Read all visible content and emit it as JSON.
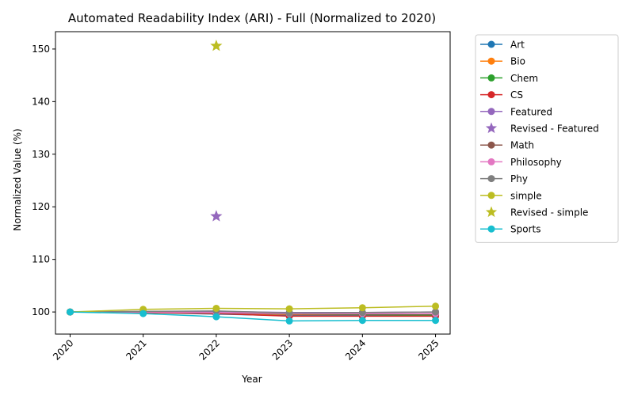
{
  "chart_data": {
    "type": "line",
    "title": "Automated Readability Index (ARI) - Full (Normalized to 2020)",
    "xlabel": "Year",
    "ylabel": "Normalized Value (%)",
    "x": [
      2020,
      2021,
      2022,
      2023,
      2024,
      2025
    ],
    "xlim": [
      2019.8,
      2025.2
    ],
    "ylim": [
      95.8,
      153.3
    ],
    "yticks": [
      100,
      110,
      120,
      130,
      140,
      150
    ],
    "grid": false,
    "legend_position": "outside-right",
    "series": [
      {
        "name": "Art",
        "color": "#1f77b4",
        "marker": "circle",
        "values": [
          100,
          99.9,
          99.6,
          99.3,
          99.3,
          99.3
        ]
      },
      {
        "name": "Bio",
        "color": "#ff7f0e",
        "marker": "circle",
        "values": [
          100,
          99.9,
          99.7,
          99.5,
          99.5,
          99.5
        ]
      },
      {
        "name": "Chem",
        "color": "#2ca02c",
        "marker": "circle",
        "values": [
          100,
          100.0,
          99.8,
          99.6,
          99.5,
          99.4
        ]
      },
      {
        "name": "CS",
        "color": "#d62728",
        "marker": "circle",
        "values": [
          100,
          99.9,
          99.7,
          99.2,
          99.2,
          99.2
        ]
      },
      {
        "name": "Featured",
        "color": "#9467bd",
        "marker": "circle",
        "values": [
          100,
          100.1,
          100.1,
          99.9,
          99.9,
          100.0
        ]
      },
      {
        "name": "Revised - Featured",
        "color": "#9467bd",
        "marker": "star",
        "points": [
          {
            "x": 2022,
            "y": 118.2
          }
        ]
      },
      {
        "name": "Math",
        "color": "#8c564b",
        "marker": "circle",
        "values": [
          100,
          100.0,
          99.8,
          99.6,
          99.6,
          99.6
        ]
      },
      {
        "name": "Philosophy",
        "color": "#e377c2",
        "marker": "circle",
        "values": [
          100,
          100.0,
          99.9,
          99.7,
          99.7,
          99.7
        ]
      },
      {
        "name": "Phy",
        "color": "#7f7f7f",
        "marker": "circle",
        "values": [
          100,
          100.1,
          100.2,
          99.8,
          99.9,
          100.0
        ]
      },
      {
        "name": "simple",
        "color": "#bcbd22",
        "marker": "circle",
        "values": [
          100,
          100.5,
          100.7,
          100.6,
          100.8,
          101.1
        ]
      },
      {
        "name": "Revised - simple",
        "color": "#bcbd22",
        "marker": "star",
        "points": [
          {
            "x": 2022,
            "y": 150.6
          }
        ]
      },
      {
        "name": "Sports",
        "color": "#17becf",
        "marker": "circle",
        "values": [
          100,
          99.7,
          99.1,
          98.3,
          98.4,
          98.4
        ]
      }
    ]
  }
}
